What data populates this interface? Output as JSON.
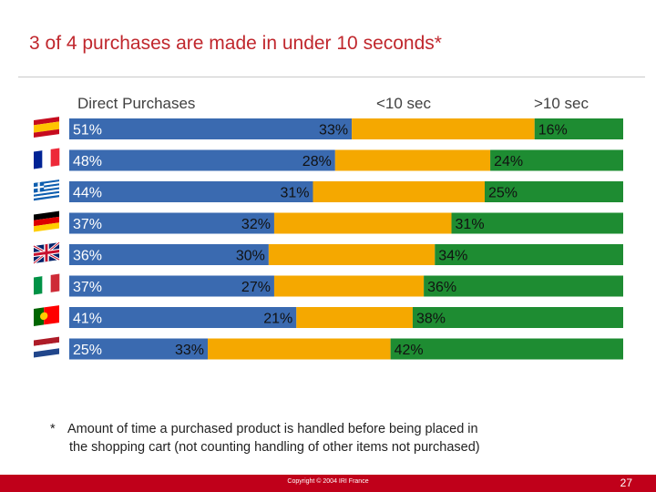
{
  "title": "3 of 4 purchases are made in under 10 seconds*",
  "footnote": {
    "marker": "*",
    "line1": "Amount of time a purchased product is handled before being placed in",
    "line2": "the shopping cart  (not counting handling of other items not purchased)"
  },
  "footer": {
    "copyright": "Copyright © 2004 IRI France",
    "page_number": "27"
  },
  "colors": {
    "direct": "#3a6ab0",
    "under10": "#f5a800",
    "over10": "#1e8c32",
    "title": "#c0272d",
    "footer": "#c0001a"
  },
  "chart_data": {
    "type": "bar",
    "orientation": "horizontal",
    "stacked": true,
    "series": [
      {
        "name": "Direct Purchases",
        "values": [
          51,
          48,
          44,
          37,
          36,
          37,
          41,
          25
        ]
      },
      {
        "name": "<10 sec",
        "values": [
          33,
          28,
          31,
          32,
          30,
          27,
          21,
          33
        ]
      },
      {
        "name": ">10 sec",
        "values": [
          16,
          24,
          25,
          31,
          34,
          36,
          38,
          42
        ]
      }
    ],
    "category_icons": [
      "flag-spain-icon",
      "flag-france-icon",
      "flag-greece-icon",
      "flag-germany-icon",
      "flag-uk-icon",
      "flag-italy-icon",
      "flag-portugal-icon",
      "flag-netherlands-icon"
    ],
    "value_suffix": "%",
    "xlim": [
      0,
      100
    ],
    "grid": false
  }
}
